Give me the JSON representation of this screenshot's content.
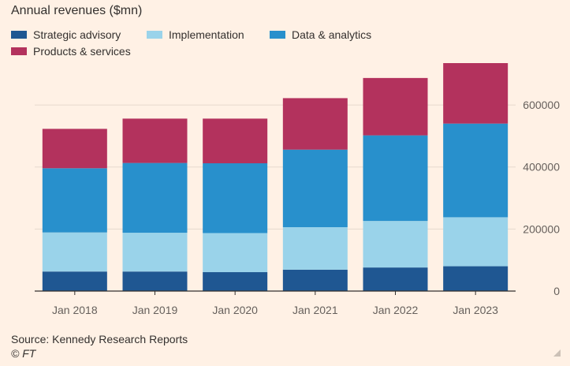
{
  "chart_data": {
    "type": "bar",
    "stacked": true,
    "title": "Annual revenues ($mn)",
    "categories": [
      "Jan 2018",
      "Jan 2019",
      "Jan 2020",
      "Jan 2021",
      "Jan 2022",
      "Jan 2023"
    ],
    "series": [
      {
        "name": "Strategic advisory",
        "color": "#1f5792",
        "values": [
          63000,
          63000,
          61000,
          69000,
          76000,
          80000
        ]
      },
      {
        "name": "Implementation",
        "color": "#9ad3ea",
        "values": [
          126000,
          125000,
          126000,
          137000,
          150000,
          158000
        ]
      },
      {
        "name": "Data & analytics",
        "color": "#2890cc",
        "values": [
          207000,
          225000,
          225000,
          250000,
          276000,
          302000
        ]
      },
      {
        "name": "Products & services",
        "color": "#b3325d",
        "values": [
          127000,
          143000,
          144000,
          166000,
          185000,
          195000
        ]
      }
    ],
    "y_ticks": [
      0,
      200000,
      400000,
      600000
    ],
    "y_tick_labels": [
      "0",
      "200000",
      "400000",
      "600000"
    ],
    "ylim": [
      0,
      735000
    ],
    "grid": true,
    "y_axis_side": "right",
    "legend_position": "top-left"
  },
  "source": "Source: Kennedy Research Reports",
  "copyright": "© FT",
  "colors": {
    "background": "#fff1e5",
    "grid": "#e6d9ce",
    "axis": "#33302e"
  }
}
